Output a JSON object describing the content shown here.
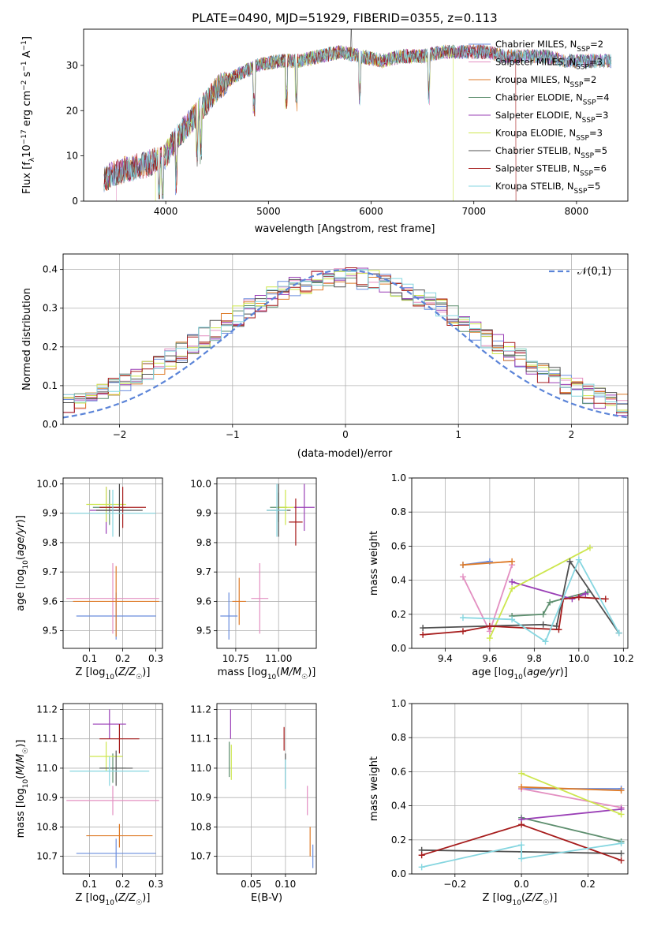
{
  "figure": {
    "title": "PLATE=0490, MJD=51929, FIBERID=0355, z=0.113"
  },
  "models": [
    {
      "name": "Chabrier MILES",
      "nssp": 2,
      "color": "#6a8dde"
    },
    {
      "name": "Salpeter MILES",
      "nssp": 3,
      "color": "#e38fc1"
    },
    {
      "name": "Kroupa MILES",
      "nssp": 2,
      "color": "#de7a27"
    },
    {
      "name": "Chabrier ELODIE",
      "nssp": 4,
      "color": "#5d8e6e"
    },
    {
      "name": "Salpeter ELODIE",
      "nssp": 3,
      "color": "#9a3fb6"
    },
    {
      "name": "Kroupa ELODIE",
      "nssp": 3,
      "color": "#cde64e"
    },
    {
      "name": "Chabrier STELIB",
      "nssp": 5,
      "color": "#505050"
    },
    {
      "name": "Salpeter STELIB",
      "nssp": 6,
      "color": "#a61c1c"
    },
    {
      "name": "Kroupa STELIB",
      "nssp": 5,
      "color": "#86d6e0"
    }
  ],
  "chart_data": [
    {
      "id": "spectrum",
      "type": "line",
      "xlabel": "wavelength [Angstrom, rest frame]",
      "ylabel": "Flux [f_λ 10^-17 erg cm^-2 s^-1 A^-1]",
      "xlim": [
        3200,
        8500
      ],
      "ylim": [
        0,
        38
      ],
      "xticks": [
        4000,
        5000,
        6000,
        7000,
        8000
      ],
      "yticks": [
        0,
        10,
        20,
        30
      ],
      "legend_position": "top-right",
      "continuum": [
        [
          3400,
          5
        ],
        [
          3600,
          7
        ],
        [
          3800,
          8
        ],
        [
          4000,
          10
        ],
        [
          4100,
          14
        ],
        [
          4300,
          19
        ],
        [
          4500,
          25
        ],
        [
          4700,
          28
        ],
        [
          4900,
          30
        ],
        [
          5100,
          31
        ],
        [
          5300,
          31
        ],
        [
          5500,
          32
        ],
        [
          5700,
          33
        ],
        [
          5900,
          32
        ],
        [
          6100,
          31
        ],
        [
          6300,
          32
        ],
        [
          6500,
          32
        ],
        [
          6700,
          33
        ],
        [
          6900,
          33
        ],
        [
          7100,
          33
        ],
        [
          7300,
          32
        ],
        [
          7500,
          32
        ],
        [
          7700,
          32
        ],
        [
          7900,
          31
        ],
        [
          8100,
          31
        ],
        [
          8300,
          31
        ]
      ],
      "absorption_lines": [
        3934,
        3969,
        4102,
        4304,
        4340,
        4861,
        5175,
        5270,
        5890,
        6563
      ],
      "series_ends": [
        {
          "model": "Salpeter MILES",
          "start": 3520
        },
        {
          "model": "Kroupa ELODIE",
          "start": 3900,
          "end": 6800
        },
        {
          "model": "Salpeter STELIB",
          "end": 7410
        }
      ]
    },
    {
      "id": "residuals",
      "type": "step",
      "xlabel": "(data-model)/error",
      "ylabel": "Normed distribution",
      "xlim": [
        -2.5,
        2.5
      ],
      "ylim": [
        0,
        0.44
      ],
      "xticks": [
        -2,
        -1,
        0,
        1,
        2
      ],
      "yticks": [
        0.0,
        0.1,
        0.2,
        0.3,
        0.4
      ],
      "bin_width": 0.1,
      "reference_curve": {
        "label": "𝒩(0,1)",
        "color": "#5b84d8",
        "style": "dashed",
        "mean": 0,
        "sigma": 1
      },
      "legend_position": "top-right"
    },
    {
      "id": "z_vs_age",
      "type": "errorbar",
      "xlabel": "Z [log10(Z/Z☉)]",
      "ylabel": "age  [log10(age/yr)]",
      "xlim": [
        0.02,
        0.32
      ],
      "ylim": [
        9.44,
        10.02
      ],
      "xticks": [
        0.1,
        0.2,
        0.3
      ],
      "yticks": [
        9.5,
        9.6,
        9.7,
        9.8,
        9.9,
        10.0
      ],
      "points": [
        {
          "model": "Chabrier MILES",
          "x": 0.18,
          "xerr": 0.12,
          "y": 9.55,
          "yerr": 0.08
        },
        {
          "model": "Salpeter MILES",
          "x": 0.17,
          "xerr": 0.14,
          "y": 9.61,
          "yerr": 0.12
        },
        {
          "model": "Kroupa MILES",
          "x": 0.18,
          "xerr": 0.13,
          "y": 9.6,
          "yerr": 0.12
        },
        {
          "model": "Chabrier ELODIE",
          "x": 0.16,
          "xerr": 0.05,
          "y": 9.92,
          "yerr": 0.06
        },
        {
          "model": "Salpeter ELODIE",
          "x": 0.15,
          "xerr": 0.05,
          "y": 9.91,
          "yerr": 0.08
        },
        {
          "model": "Kroupa ELODIE",
          "x": 0.15,
          "xerr": 0.06,
          "y": 9.93,
          "yerr": 0.06
        },
        {
          "model": "Chabrier STELIB",
          "x": 0.19,
          "xerr": 0.07,
          "y": 9.91,
          "yerr": 0.09
        },
        {
          "model": "Salpeter STELIB",
          "x": 0.2,
          "xerr": 0.07,
          "y": 9.92,
          "yerr": 0.07
        },
        {
          "model": "Kroupa STELIB",
          "x": 0.17,
          "xerr": 0.13,
          "y": 9.9,
          "yerr": 0.08
        }
      ]
    },
    {
      "id": "mass_vs_age",
      "type": "errorbar",
      "xlabel": "mass [log10(M/M☉)]",
      "ylabel": "",
      "xlim": [
        10.64,
        11.22
      ],
      "ylim": [
        9.44,
        10.02
      ],
      "xticks": [
        10.75,
        11.0
      ],
      "yticks": [
        9.5,
        9.6,
        9.7,
        9.8,
        9.9,
        10.0
      ],
      "points": [
        {
          "model": "Chabrier MILES",
          "x": 10.71,
          "xerr": 0.05,
          "y": 9.55,
          "yerr": 0.08
        },
        {
          "model": "Salpeter MILES",
          "x": 10.89,
          "xerr": 0.05,
          "y": 9.61,
          "yerr": 0.12
        },
        {
          "model": "Kroupa MILES",
          "x": 10.77,
          "xerr": 0.04,
          "y": 9.6,
          "yerr": 0.08
        },
        {
          "model": "Chabrier ELODIE",
          "x": 11.0,
          "xerr": 0.05,
          "y": 9.92,
          "yerr": 0.05
        },
        {
          "model": "Salpeter ELODIE",
          "x": 11.15,
          "xerr": 0.06,
          "y": 9.92,
          "yerr": 0.08
        },
        {
          "model": "Kroupa ELODIE",
          "x": 11.04,
          "xerr": 0.05,
          "y": 9.92,
          "yerr": 0.06
        },
        {
          "model": "Chabrier STELIB",
          "x": 11.0,
          "xerr": 0.07,
          "y": 9.91,
          "yerr": 0.09
        },
        {
          "model": "Salpeter STELIB",
          "x": 11.1,
          "xerr": 0.04,
          "y": 9.87,
          "yerr": 0.08
        },
        {
          "model": "Kroupa STELIB",
          "x": 10.99,
          "xerr": 0.06,
          "y": 9.91,
          "yerr": 0.09
        }
      ]
    },
    {
      "id": "age_vs_weight",
      "type": "line",
      "xlabel": "age  [log10(age/yr)]",
      "ylabel": "mass weight",
      "xlim": [
        9.25,
        10.22
      ],
      "ylim": [
        0,
        1
      ],
      "xticks": [
        9.4,
        9.6,
        9.8,
        10.0,
        10.2
      ],
      "yticks": [
        0.0,
        0.2,
        0.4,
        0.6,
        0.8,
        1.0
      ],
      "series": [
        {
          "model": "Chabrier MILES",
          "points": [
            [
              9.48,
              0.49
            ],
            [
              9.6,
              0.51
            ]
          ]
        },
        {
          "model": "Salpeter MILES",
          "points": [
            [
              9.48,
              0.42
            ],
            [
              9.6,
              0.1
            ],
            [
              9.7,
              0.49
            ]
          ]
        },
        {
          "model": "Kroupa MILES",
          "points": [
            [
              9.48,
              0.49
            ],
            [
              9.7,
              0.51
            ]
          ]
        },
        {
          "model": "Chabrier ELODIE",
          "points": [
            [
              9.7,
              0.19
            ],
            [
              9.84,
              0.2
            ],
            [
              9.87,
              0.27
            ],
            [
              10.04,
              0.33
            ]
          ]
        },
        {
          "model": "Salpeter ELODIE",
          "points": [
            [
              9.7,
              0.39
            ],
            [
              9.97,
              0.29
            ],
            [
              10.03,
              0.32
            ]
          ]
        },
        {
          "model": "Kroupa ELODIE",
          "points": [
            [
              9.6,
              0.06
            ],
            [
              9.7,
              0.35
            ],
            [
              10.05,
              0.59
            ]
          ]
        },
        {
          "model": "Chabrier STELIB",
          "points": [
            [
              9.3,
              0.12
            ],
            [
              9.84,
              0.14
            ],
            [
              9.9,
              0.13
            ],
            [
              9.96,
              0.51
            ],
            [
              10.18,
              0.09
            ]
          ]
        },
        {
          "model": "Salpeter STELIB",
          "points": [
            [
              9.3,
              0.08
            ],
            [
              9.48,
              0.1
            ],
            [
              9.6,
              0.13
            ],
            [
              9.91,
              0.11
            ],
            [
              9.93,
              0.29
            ],
            [
              10.0,
              0.3
            ],
            [
              10.12,
              0.29
            ]
          ]
        },
        {
          "model": "Kroupa STELIB",
          "points": [
            [
              9.48,
              0.18
            ],
            [
              9.7,
              0.17
            ],
            [
              9.85,
              0.04
            ],
            [
              10.0,
              0.52
            ],
            [
              10.18,
              0.09
            ]
          ]
        }
      ]
    },
    {
      "id": "z_vs_mass",
      "type": "errorbar",
      "xlabel": "Z [log10(Z/Z☉)]",
      "ylabel": "mass [log10(M/M☉)]",
      "xlim": [
        0.02,
        0.32
      ],
      "ylim": [
        10.64,
        11.22
      ],
      "xticks": [
        0.1,
        0.2,
        0.3
      ],
      "yticks": [
        10.7,
        10.8,
        10.9,
        11.0,
        11.1,
        11.2
      ],
      "points": [
        {
          "model": "Chabrier MILES",
          "x": 0.18,
          "xerr": 0.12,
          "y": 10.71,
          "yerr": 0.05
        },
        {
          "model": "Salpeter MILES",
          "x": 0.17,
          "xerr": 0.14,
          "y": 10.89,
          "yerr": 0.05
        },
        {
          "model": "Kroupa MILES",
          "x": 0.19,
          "xerr": 0.1,
          "y": 10.77,
          "yerr": 0.04
        },
        {
          "model": "Chabrier ELODIE",
          "x": 0.17,
          "xerr": 0.04,
          "y": 11.0,
          "yerr": 0.05
        },
        {
          "model": "Salpeter ELODIE",
          "x": 0.16,
          "xerr": 0.05,
          "y": 11.15,
          "yerr": 0.05
        },
        {
          "model": "Kroupa ELODIE",
          "x": 0.15,
          "xerr": 0.05,
          "y": 11.04,
          "yerr": 0.05
        },
        {
          "model": "Chabrier STELIB",
          "x": 0.18,
          "xerr": 0.05,
          "y": 11.0,
          "yerr": 0.06
        },
        {
          "model": "Salpeter STELIB",
          "x": 0.19,
          "xerr": 0.06,
          "y": 11.1,
          "yerr": 0.05
        },
        {
          "model": "Kroupa STELIB",
          "x": 0.16,
          "xerr": 0.12,
          "y": 10.99,
          "yerr": 0.05
        }
      ]
    },
    {
      "id": "ebv_vs_mass",
      "type": "errorbar",
      "xlabel": "E(B-V)",
      "ylabel": "",
      "xlim": [
        0.0,
        0.145
      ],
      "ylim": [
        10.64,
        11.22
      ],
      "xticks": [
        0.05,
        0.1
      ],
      "yticks": [
        10.7,
        10.8,
        10.9,
        11.0,
        11.1,
        11.2
      ],
      "points": [
        {
          "model": "Chabrier MILES",
          "x": 0.14,
          "y": 10.7,
          "yerr": 0.04
        },
        {
          "model": "Salpeter MILES",
          "x": 0.132,
          "y": 10.89,
          "yerr": 0.05
        },
        {
          "model": "Kroupa MILES",
          "x": 0.136,
          "y": 10.75,
          "yerr": 0.05
        },
        {
          "model": "Chabrier ELODIE",
          "x": 0.018,
          "y": 11.03,
          "yerr": 0.06
        },
        {
          "model": "Salpeter ELODIE",
          "x": 0.02,
          "y": 11.15,
          "yerr": 0.05
        },
        {
          "model": "Kroupa ELODIE",
          "x": 0.021,
          "y": 11.02,
          "yerr": 0.06
        },
        {
          "model": "Chabrier STELIB",
          "x": 0.1,
          "y": 10.99,
          "yerr": 0.06
        },
        {
          "model": "Salpeter STELIB",
          "x": 0.098,
          "y": 11.1,
          "yerr": 0.04
        },
        {
          "model": "Kroupa STELIB",
          "x": 0.1,
          "y": 10.98,
          "yerr": 0.05
        }
      ]
    },
    {
      "id": "z_vs_weight",
      "type": "line",
      "xlabel": "Z [log10(Z/Z☉)]",
      "ylabel": "mass weight",
      "xlim": [
        -0.33,
        0.32
      ],
      "ylim": [
        0,
        1
      ],
      "xticks": [
        -0.2,
        0.0,
        0.2
      ],
      "yticks": [
        0.0,
        0.2,
        0.4,
        0.6,
        0.8,
        1.0
      ],
      "series": [
        {
          "model": "Chabrier MILES",
          "points": [
            [
              0.0,
              0.5
            ],
            [
              0.3,
              0.5
            ]
          ]
        },
        {
          "model": "Salpeter MILES",
          "points": [
            [
              0.0,
              0.5
            ],
            [
              0.3,
              0.39
            ]
          ]
        },
        {
          "model": "Kroupa MILES",
          "points": [
            [
              0.0,
              0.51
            ],
            [
              0.3,
              0.49
            ]
          ]
        },
        {
          "model": "Chabrier ELODIE",
          "points": [
            [
              0.0,
              0.33
            ],
            [
              0.3,
              0.19
            ]
          ]
        },
        {
          "model": "Salpeter ELODIE",
          "points": [
            [
              0.0,
              0.32
            ],
            [
              0.3,
              0.38
            ]
          ]
        },
        {
          "model": "Kroupa ELODIE",
          "points": [
            [
              0.0,
              0.59
            ],
            [
              0.3,
              0.35
            ]
          ]
        },
        {
          "model": "Chabrier STELIB",
          "points": [
            [
              -0.3,
              0.14
            ],
            [
              0.0,
              0.13
            ],
            [
              0.3,
              0.12
            ]
          ]
        },
        {
          "model": "Salpeter STELIB",
          "points": [
            [
              -0.3,
              0.11
            ],
            [
              0.0,
              0.29
            ],
            [
              0.3,
              0.08
            ]
          ]
        },
        {
          "model": "Kroupa STELIB",
          "points": [
            [
              -0.3,
              0.04
            ],
            [
              0.0,
              0.17
            ],
            [
              0.0,
              0.09
            ],
            [
              0.3,
              0.18
            ]
          ]
        }
      ]
    }
  ]
}
